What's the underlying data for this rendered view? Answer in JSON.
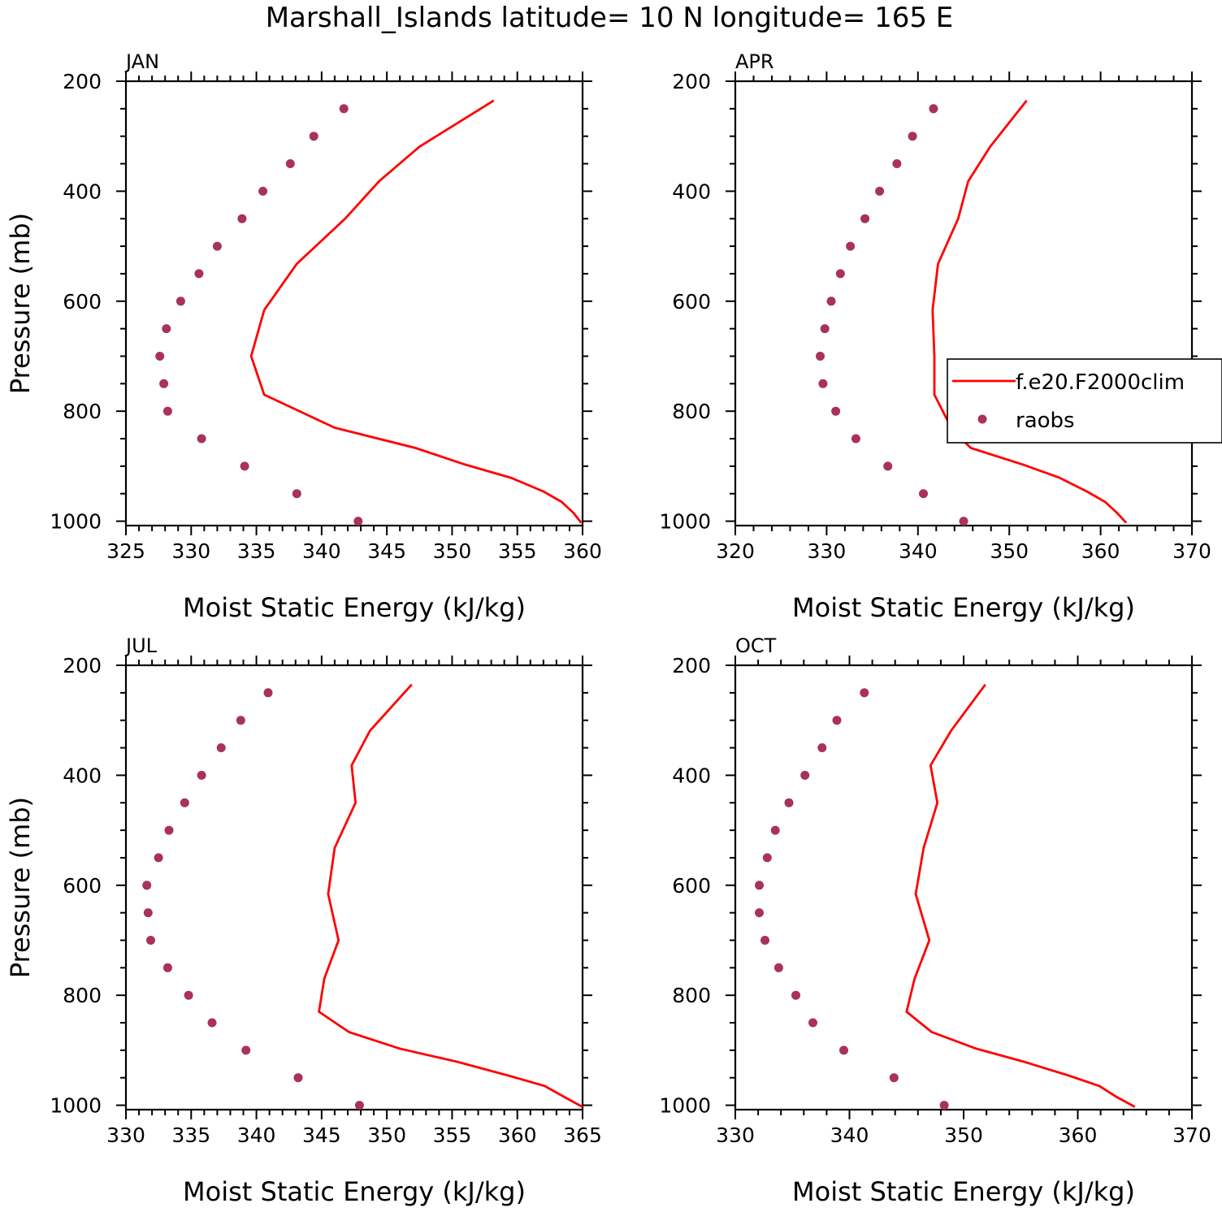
{
  "title": "Marshall_Islands  latitude= 10 N longitude= 165 E",
  "colors": {
    "model_line": "#ff0000",
    "raobs_marker": "#a8315e",
    "frame": "#000000"
  },
  "legend": {
    "location": "right-of-APR-panel",
    "entries": [
      "f.e20.F2000clim",
      "raobs"
    ]
  },
  "chart_data": [
    {
      "type": "line",
      "panel": "JAN",
      "title": "JAN",
      "xlabel": "Moist Static Energy (kJ/kg)",
      "ylabel": "Pressure (mb)",
      "xlim": [
        325,
        360
      ],
      "ylim": [
        1000,
        200
      ],
      "xticks": [
        "325",
        "330",
        "335",
        "340",
        "345",
        "350",
        "355",
        "360"
      ],
      "yticks": [
        "200",
        "400",
        "600",
        "800",
        "1000"
      ],
      "series": [
        {
          "name": "f.e20.F2000clim",
          "x": [
            359.9,
            359.3,
            358.4,
            357.0,
            354.5,
            351.0,
            347.2,
            341.0,
            335.6,
            334.6,
            335.6,
            338.1,
            341.8,
            344.4,
            347.5,
            353.2
          ],
          "y": [
            1003,
            985,
            965,
            946,
            921,
            897,
            867,
            830,
            770,
            700,
            616,
            532,
            450,
            382,
            319,
            235
          ]
        },
        {
          "name": "raobs",
          "x": [
            342.8,
            338.1,
            334.1,
            330.8,
            328.2,
            327.9,
            327.6,
            328.1,
            329.2,
            330.6,
            332.0,
            333.9,
            335.5,
            337.6,
            339.4,
            341.7
          ],
          "y": [
            1000,
            950,
            900,
            850,
            800,
            750,
            700,
            650,
            600,
            550,
            500,
            450,
            400,
            350,
            300,
            250
          ]
        }
      ]
    },
    {
      "type": "line",
      "panel": "APR",
      "title": "APR",
      "xlabel": "Moist Static Energy (kJ/kg)",
      "ylabel": "",
      "xlim": [
        320,
        370
      ],
      "ylim": [
        1000,
        200
      ],
      "xticks": [
        "320",
        "330",
        "340",
        "350",
        "360",
        "370"
      ],
      "yticks": [
        "200",
        "400",
        "600",
        "800",
        "1000"
      ],
      "series": [
        {
          "name": "f.e20.F2000clim",
          "x": [
            362.8,
            361.8,
            360.5,
            358.5,
            355.5,
            351.5,
            345.8,
            343.8,
            341.8,
            341.8,
            341.6,
            342.2,
            344.4,
            345.5,
            347.9,
            351.9
          ],
          "y": [
            1003,
            985,
            965,
            946,
            921,
            897,
            867,
            835,
            770,
            700,
            616,
            532,
            450,
            382,
            319,
            235
          ]
        },
        {
          "name": "raobs",
          "x": [
            345.0,
            340.6,
            336.7,
            333.2,
            331.0,
            329.6,
            329.3,
            329.8,
            330.5,
            331.5,
            332.6,
            334.2,
            335.8,
            337.7,
            339.4,
            341.7
          ],
          "y": [
            1000,
            950,
            900,
            850,
            800,
            750,
            700,
            650,
            600,
            550,
            500,
            450,
            400,
            350,
            300,
            250
          ]
        }
      ]
    },
    {
      "type": "line",
      "panel": "JUL",
      "title": "JUL",
      "xlabel": "Moist Static Energy (kJ/kg)",
      "ylabel": "Pressure (mb)",
      "xlim": [
        330,
        365
      ],
      "ylim": [
        1000,
        200
      ],
      "xticks": [
        "330",
        "335",
        "340",
        "345",
        "350",
        "355",
        "360",
        "365"
      ],
      "yticks": [
        "200",
        "400",
        "600",
        "800",
        "1000"
      ],
      "series": [
        {
          "name": "f.e20.F2000clim",
          "x": [
            365.0,
            363.6,
            362.1,
            359.3,
            355.4,
            351.0,
            347.1,
            344.8,
            345.2,
            346.3,
            345.5,
            346.0,
            347.6,
            347.3,
            348.7,
            351.9
          ],
          "y": [
            1003,
            985,
            965,
            946,
            921,
            897,
            867,
            830,
            770,
            700,
            616,
            532,
            450,
            382,
            319,
            235
          ]
        },
        {
          "name": "raobs",
          "x": [
            347.9,
            343.2,
            339.2,
            336.6,
            334.8,
            333.2,
            331.9,
            331.7,
            331.6,
            332.5,
            333.3,
            334.5,
            335.8,
            337.3,
            338.8,
            340.9
          ],
          "y": [
            1000,
            950,
            900,
            850,
            800,
            750,
            700,
            650,
            600,
            550,
            500,
            450,
            400,
            350,
            300,
            250
          ]
        }
      ]
    },
    {
      "type": "line",
      "panel": "OCT",
      "title": "OCT",
      "xlabel": "Moist Static Energy (kJ/kg)",
      "ylabel": "",
      "xlim": [
        330,
        370
      ],
      "ylim": [
        1000,
        200
      ],
      "xticks": [
        "330",
        "340",
        "350",
        "360",
        "370"
      ],
      "yticks": [
        "200",
        "400",
        "600",
        "800",
        "1000"
      ],
      "series": [
        {
          "name": "f.e20.F2000clim",
          "x": [
            365.0,
            363.4,
            361.9,
            359.2,
            355.3,
            351.1,
            347.2,
            345.0,
            345.7,
            347.0,
            345.8,
            346.5,
            347.7,
            347.1,
            348.9,
            351.9
          ],
          "y": [
            1003,
            985,
            965,
            946,
            921,
            897,
            867,
            830,
            770,
            700,
            616,
            532,
            450,
            382,
            319,
            235
          ]
        },
        {
          "name": "raobs",
          "x": [
            348.3,
            343.9,
            339.5,
            336.8,
            335.3,
            333.8,
            332.6,
            332.1,
            332.1,
            332.8,
            333.5,
            334.7,
            336.1,
            337.6,
            338.9,
            341.3
          ],
          "y": [
            1000,
            950,
            900,
            850,
            800,
            750,
            700,
            650,
            600,
            550,
            500,
            450,
            400,
            350,
            300,
            250
          ]
        }
      ]
    }
  ]
}
